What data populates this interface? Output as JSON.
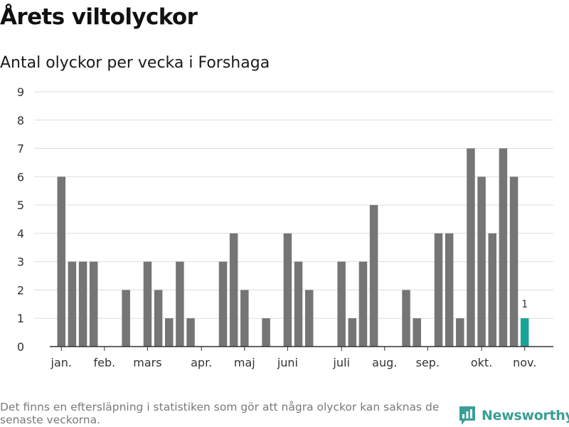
{
  "title": "Årets viltolyckor",
  "subtitle": "Antal olyckor per vecka i Forshaga",
  "footnote": "Det finns en eftersläpning i statistiken som gör att några olyckor kan saknas de senaste veckorna.",
  "brand": {
    "name": "Newsworthy",
    "icon": "newsworthy-logo-icon",
    "color": "#3a9e96"
  },
  "chart_data": {
    "type": "bar",
    "categories": [
      "v1",
      "v2",
      "v3",
      "v4",
      "v5",
      "v6",
      "v7",
      "v8",
      "v9",
      "v10",
      "v11",
      "v12",
      "v13",
      "v14",
      "v15",
      "v16",
      "v17",
      "v18",
      "v19",
      "v20",
      "v21",
      "v22",
      "v23",
      "v24",
      "v25",
      "v26",
      "v27",
      "v28",
      "v29",
      "v30",
      "v31",
      "v32",
      "v33",
      "v34",
      "v35",
      "v36",
      "v37",
      "v38",
      "v39",
      "v40",
      "v41",
      "v42",
      "v43",
      "v44"
    ],
    "values": [
      6,
      3,
      3,
      3,
      0,
      0,
      2,
      0,
      3,
      2,
      1,
      3,
      1,
      0,
      0,
      3,
      4,
      2,
      0,
      1,
      0,
      4,
      3,
      2,
      0,
      0,
      3,
      1,
      3,
      5,
      0,
      0,
      2,
      1,
      0,
      4,
      4,
      1,
      7,
      6,
      4,
      7,
      6,
      1
    ],
    "highlight_index": 43,
    "highlight_label": "1",
    "colors": {
      "bar": "#757575",
      "highlight": "#1aa39a",
      "grid": "#dddddd",
      "axis": "#333333"
    },
    "ylim": [
      0,
      9
    ],
    "yticks": [
      "0",
      "1",
      "2",
      "3",
      "4",
      "5",
      "6",
      "7",
      "8",
      "9"
    ],
    "xticks": [
      {
        "label": "jan.",
        "at_week": 1
      },
      {
        "label": "feb.",
        "at_week": 5
      },
      {
        "label": "mars",
        "at_week": 9
      },
      {
        "label": "apr.",
        "at_week": 14
      },
      {
        "label": "maj",
        "at_week": 18
      },
      {
        "label": "juni",
        "at_week": 22
      },
      {
        "label": "juli",
        "at_week": 27
      },
      {
        "label": "aug.",
        "at_week": 31
      },
      {
        "label": "sep.",
        "at_week": 35
      },
      {
        "label": "okt.",
        "at_week": 40
      },
      {
        "label": "nov.",
        "at_week": 44
      }
    ],
    "grid": true
  }
}
